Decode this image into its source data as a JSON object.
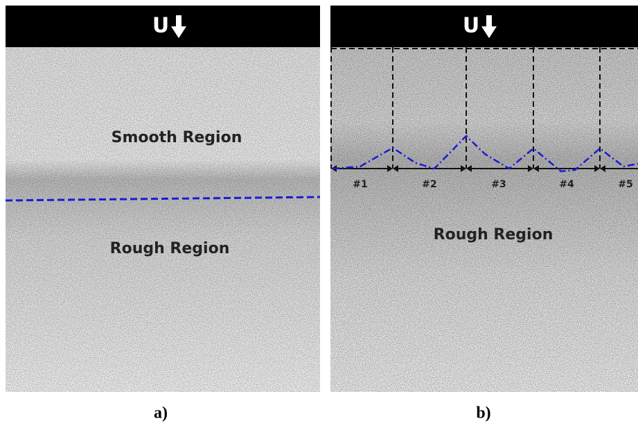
{
  "panels": [
    {
      "header": "U",
      "regions": [
        "Smooth Region",
        "Rough Region"
      ],
      "caption": "a)"
    },
    {
      "header": "U",
      "regions": [
        "Rough Region"
      ],
      "segments": [
        "#1",
        "#2",
        "#3",
        "#4",
        "#5"
      ],
      "caption": "b)"
    }
  ]
}
